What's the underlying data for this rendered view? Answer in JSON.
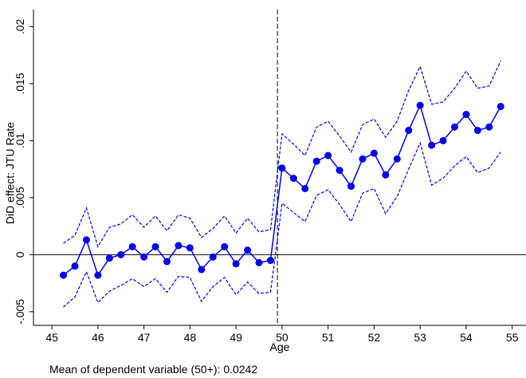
{
  "chart_data": {
    "type": "line",
    "ylabel": "DiD effect: JTU Rate",
    "xlabel": "Age",
    "note": "Mean of dependent variable (50+): 0.0242",
    "x": [
      45.25,
      45.5,
      45.75,
      46,
      46.25,
      46.5,
      46.75,
      47,
      47.25,
      47.5,
      47.75,
      48,
      48.25,
      48.5,
      48.75,
      49,
      49.25,
      49.5,
      49.75,
      50,
      50.25,
      50.5,
      50.75,
      51,
      51.25,
      51.5,
      51.75,
      52,
      52.25,
      52.5,
      52.75,
      53,
      53.25,
      53.5,
      53.75,
      54,
      54.25,
      54.5,
      54.75
    ],
    "values": [
      -0.0018,
      -0.001,
      0.0013,
      -0.0018,
      -0.0003,
      0.0,
      0.0007,
      -0.0002,
      0.0007,
      -0.0006,
      0.0008,
      0.0006,
      -0.0013,
      -0.0002,
      0.0007,
      -0.0008,
      0.0004,
      -0.0007,
      -0.0005,
      0.0076,
      0.0067,
      0.0058,
      0.0082,
      0.0087,
      0.0074,
      0.006,
      0.0084,
      0.0089,
      0.007,
      0.0084,
      0.0109,
      0.0131,
      0.0096,
      0.01,
      0.0112,
      0.0123,
      0.0109,
      0.0112,
      0.013
    ],
    "ci_upper": [
      0.001,
      0.0017,
      0.0041,
      0.0007,
      0.0024,
      0.0027,
      0.0035,
      0.0024,
      0.0034,
      0.0021,
      0.0035,
      0.0032,
      0.0015,
      0.0023,
      0.0034,
      0.0019,
      0.0032,
      0.002,
      0.0022,
      0.0106,
      0.0097,
      0.0087,
      0.0112,
      0.0117,
      0.0104,
      0.009,
      0.0114,
      0.0119,
      0.0103,
      0.0117,
      0.0144,
      0.0165,
      0.0132,
      0.0134,
      0.0146,
      0.0161,
      0.0146,
      0.0148,
      0.017
    ],
    "ci_lower": [
      -0.0046,
      -0.0037,
      -0.0015,
      -0.0042,
      -0.0032,
      -0.0027,
      -0.0021,
      -0.0028,
      -0.0021,
      -0.0033,
      -0.0019,
      -0.002,
      -0.0041,
      -0.0028,
      -0.002,
      -0.0035,
      -0.0024,
      -0.0034,
      -0.0033,
      0.0045,
      0.0037,
      0.0029,
      0.0052,
      0.0057,
      0.0044,
      0.0029,
      0.0054,
      0.0058,
      0.0036,
      0.0051,
      0.0075,
      0.0098,
      0.0061,
      0.0067,
      0.0078,
      0.0086,
      0.0072,
      0.0076,
      0.009
    ],
    "color": "#0000ee",
    "cutoff": 49.9,
    "xlim": [
      44.6,
      55.3
    ],
    "ylim": [
      -0.0062,
      0.0215
    ],
    "xticks": [
      45,
      46,
      47,
      48,
      49,
      50,
      51,
      52,
      53,
      54,
      55
    ],
    "yticks": [
      {
        "value": -0.005,
        "label": "-.005"
      },
      0,
      {
        "value": 0.005,
        "label": ".005"
      },
      {
        "value": 0.01,
        "label": ".01"
      },
      {
        "value": 0.015,
        "label": ".015"
      },
      {
        "value": 0.02,
        "label": ".02"
      }
    ]
  }
}
